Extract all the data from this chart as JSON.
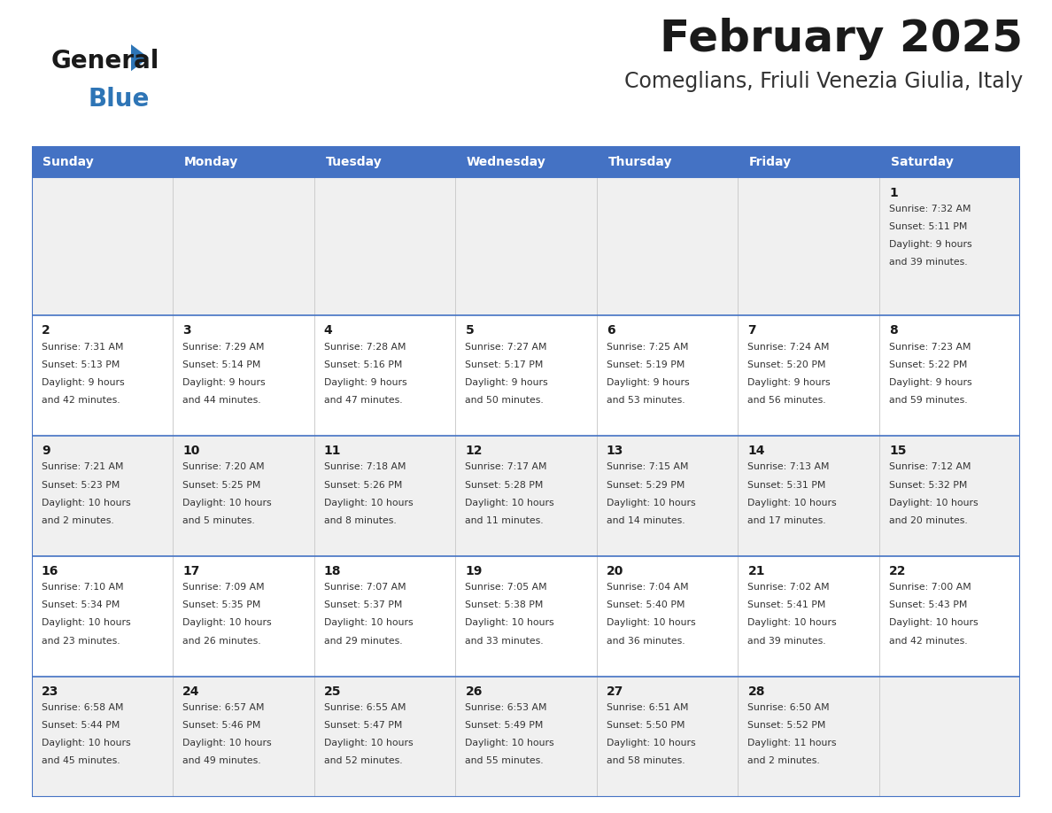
{
  "title": "February 2025",
  "subtitle": "Comeglians, Friuli Venezia Giulia, Italy",
  "header_color": "#4472C4",
  "header_text_color": "#FFFFFF",
  "bg_color": "#FFFFFF",
  "alt_row_color": "#F0F0F0",
  "border_color": "#4472C4",
  "row_divider_color": "#4472C4",
  "day_names": [
    "Sunday",
    "Monday",
    "Tuesday",
    "Wednesday",
    "Thursday",
    "Friday",
    "Saturday"
  ],
  "title_color": "#1a1a1a",
  "subtitle_color": "#333333",
  "cell_text_color": "#333333",
  "day_num_color": "#1a1a1a",
  "logo_general_color": "#1a1a1a",
  "logo_blue_color": "#2E75B6",
  "weeks": [
    [
      null,
      null,
      null,
      null,
      null,
      null,
      {
        "day": 1,
        "sunrise": "7:32 AM",
        "sunset": "5:11 PM",
        "daylight_h": "9 hours",
        "daylight_m": "and 39 minutes."
      }
    ],
    [
      {
        "day": 2,
        "sunrise": "7:31 AM",
        "sunset": "5:13 PM",
        "daylight_h": "9 hours",
        "daylight_m": "and 42 minutes."
      },
      {
        "day": 3,
        "sunrise": "7:29 AM",
        "sunset": "5:14 PM",
        "daylight_h": "9 hours",
        "daylight_m": "and 44 minutes."
      },
      {
        "day": 4,
        "sunrise": "7:28 AM",
        "sunset": "5:16 PM",
        "daylight_h": "9 hours",
        "daylight_m": "and 47 minutes."
      },
      {
        "day": 5,
        "sunrise": "7:27 AM",
        "sunset": "5:17 PM",
        "daylight_h": "9 hours",
        "daylight_m": "and 50 minutes."
      },
      {
        "day": 6,
        "sunrise": "7:25 AM",
        "sunset": "5:19 PM",
        "daylight_h": "9 hours",
        "daylight_m": "and 53 minutes."
      },
      {
        "day": 7,
        "sunrise": "7:24 AM",
        "sunset": "5:20 PM",
        "daylight_h": "9 hours",
        "daylight_m": "and 56 minutes."
      },
      {
        "day": 8,
        "sunrise": "7:23 AM",
        "sunset": "5:22 PM",
        "daylight_h": "9 hours",
        "daylight_m": "and 59 minutes."
      }
    ],
    [
      {
        "day": 9,
        "sunrise": "7:21 AM",
        "sunset": "5:23 PM",
        "daylight_h": "10 hours",
        "daylight_m": "and 2 minutes."
      },
      {
        "day": 10,
        "sunrise": "7:20 AM",
        "sunset": "5:25 PM",
        "daylight_h": "10 hours",
        "daylight_m": "and 5 minutes."
      },
      {
        "day": 11,
        "sunrise": "7:18 AM",
        "sunset": "5:26 PM",
        "daylight_h": "10 hours",
        "daylight_m": "and 8 minutes."
      },
      {
        "day": 12,
        "sunrise": "7:17 AM",
        "sunset": "5:28 PM",
        "daylight_h": "10 hours",
        "daylight_m": "and 11 minutes."
      },
      {
        "day": 13,
        "sunrise": "7:15 AM",
        "sunset": "5:29 PM",
        "daylight_h": "10 hours",
        "daylight_m": "and 14 minutes."
      },
      {
        "day": 14,
        "sunrise": "7:13 AM",
        "sunset": "5:31 PM",
        "daylight_h": "10 hours",
        "daylight_m": "and 17 minutes."
      },
      {
        "day": 15,
        "sunrise": "7:12 AM",
        "sunset": "5:32 PM",
        "daylight_h": "10 hours",
        "daylight_m": "and 20 minutes."
      }
    ],
    [
      {
        "day": 16,
        "sunrise": "7:10 AM",
        "sunset": "5:34 PM",
        "daylight_h": "10 hours",
        "daylight_m": "and 23 minutes."
      },
      {
        "day": 17,
        "sunrise": "7:09 AM",
        "sunset": "5:35 PM",
        "daylight_h": "10 hours",
        "daylight_m": "and 26 minutes."
      },
      {
        "day": 18,
        "sunrise": "7:07 AM",
        "sunset": "5:37 PM",
        "daylight_h": "10 hours",
        "daylight_m": "and 29 minutes."
      },
      {
        "day": 19,
        "sunrise": "7:05 AM",
        "sunset": "5:38 PM",
        "daylight_h": "10 hours",
        "daylight_m": "and 33 minutes."
      },
      {
        "day": 20,
        "sunrise": "7:04 AM",
        "sunset": "5:40 PM",
        "daylight_h": "10 hours",
        "daylight_m": "and 36 minutes."
      },
      {
        "day": 21,
        "sunrise": "7:02 AM",
        "sunset": "5:41 PM",
        "daylight_h": "10 hours",
        "daylight_m": "and 39 minutes."
      },
      {
        "day": 22,
        "sunrise": "7:00 AM",
        "sunset": "5:43 PM",
        "daylight_h": "10 hours",
        "daylight_m": "and 42 minutes."
      }
    ],
    [
      {
        "day": 23,
        "sunrise": "6:58 AM",
        "sunset": "5:44 PM",
        "daylight_h": "10 hours",
        "daylight_m": "and 45 minutes."
      },
      {
        "day": 24,
        "sunrise": "6:57 AM",
        "sunset": "5:46 PM",
        "daylight_h": "10 hours",
        "daylight_m": "and 49 minutes."
      },
      {
        "day": 25,
        "sunrise": "6:55 AM",
        "sunset": "5:47 PM",
        "daylight_h": "10 hours",
        "daylight_m": "and 52 minutes."
      },
      {
        "day": 26,
        "sunrise": "6:53 AM",
        "sunset": "5:49 PM",
        "daylight_h": "10 hours",
        "daylight_m": "and 55 minutes."
      },
      {
        "day": 27,
        "sunrise": "6:51 AM",
        "sunset": "5:50 PM",
        "daylight_h": "10 hours",
        "daylight_m": "and 58 minutes."
      },
      {
        "day": 28,
        "sunrise": "6:50 AM",
        "sunset": "5:52 PM",
        "daylight_h": "11 hours",
        "daylight_m": "and 2 minutes."
      },
      null
    ]
  ]
}
